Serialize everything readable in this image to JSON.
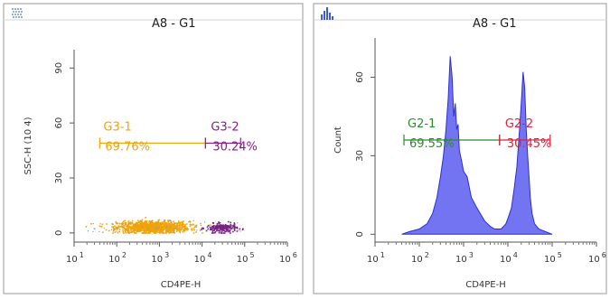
{
  "chart_data": [
    {
      "type": "scatter",
      "title": "A8 - G1",
      "xlabel": "CD4PE-H",
      "ylabel": "SSC-H (10 4)",
      "x_scale": "log",
      "xlim": [
        10,
        1000000
      ],
      "ylim": [
        -5,
        100
      ],
      "x_ticks": [
        {
          "base": "10",
          "exp": "1"
        },
        {
          "base": "10",
          "exp": "2"
        },
        {
          "base": "10",
          "exp": "3"
        },
        {
          "base": "10",
          "exp": "4"
        },
        {
          "base": "10",
          "exp": "5"
        },
        {
          "base": "10",
          "exp": "6"
        }
      ],
      "y_ticks": [
        "0",
        "30",
        "60",
        "90"
      ],
      "populations": [
        {
          "x_center": 700,
          "x_spread": 0.42,
          "y_center": 3.5,
          "y_spread": 1.6,
          "count": 1100,
          "color": "#f0a30a"
        },
        {
          "x_center": 28000,
          "x_spread": 0.18,
          "y_center": 3.0,
          "y_spread": 1.2,
          "count": 220,
          "color": "#7a1f86"
        }
      ],
      "gates": [
        {
          "name": "G3-1",
          "percent": "69.76%",
          "x_from": 40,
          "x_to": 12000,
          "y": 49,
          "color": "#f0a30a"
        },
        {
          "name": "G3-2",
          "percent": "30.24%",
          "x_from": 12000,
          "x_to": 80000,
          "y": 49,
          "color": "#8b1a8f"
        }
      ]
    },
    {
      "type": "area",
      "title": "A8 - G1",
      "xlabel": "CD4PE-H",
      "ylabel": "Count",
      "x_scale": "log",
      "xlim": [
        10,
        1000000
      ],
      "ylim": [
        -3,
        75
      ],
      "x_ticks": [
        {
          "base": "10",
          "exp": "1"
        },
        {
          "base": "10",
          "exp": "2"
        },
        {
          "base": "10",
          "exp": "3"
        },
        {
          "base": "10",
          "exp": "4"
        },
        {
          "base": "10",
          "exp": "5"
        },
        {
          "base": "10",
          "exp": "6"
        }
      ],
      "y_ticks": [
        "0",
        "30",
        "60"
      ],
      "x": [
        40,
        60,
        100,
        150,
        200,
        250,
        300,
        350,
        400,
        450,
        500,
        550,
        600,
        650,
        700,
        750,
        800,
        900,
        1000,
        1200,
        1500,
        2000,
        3000,
        4000,
        5000,
        6000,
        7000,
        8000,
        9000,
        10000,
        12000,
        14000,
        16000,
        18000,
        20000,
        22000,
        24000,
        26000,
        28000,
        30000,
        32000,
        35000,
        40000,
        50000,
        70000,
        100000
      ],
      "y": [
        0,
        1,
        2,
        4,
        8,
        14,
        22,
        30,
        40,
        52,
        68,
        60,
        45,
        50,
        40,
        42,
        32,
        28,
        24,
        22,
        14,
        10,
        5,
        3,
        2,
        2,
        2,
        3,
        4,
        6,
        10,
        18,
        26,
        38,
        50,
        62,
        56,
        40,
        30,
        22,
        14,
        8,
        4,
        2,
        1,
        0
      ],
      "fill": "#5a5cf0",
      "stroke": "#2c2fd1",
      "gates": [
        {
          "name": "G2-1",
          "percent": "69.55%",
          "x_from": 45,
          "x_to": 6500,
          "y": 36,
          "color": "#2e8b2e"
        },
        {
          "name": "G2-2",
          "percent": "30.45%",
          "x_from": 6500,
          "x_to": 90000,
          "y": 36,
          "color": "#e0203a"
        }
      ]
    }
  ]
}
